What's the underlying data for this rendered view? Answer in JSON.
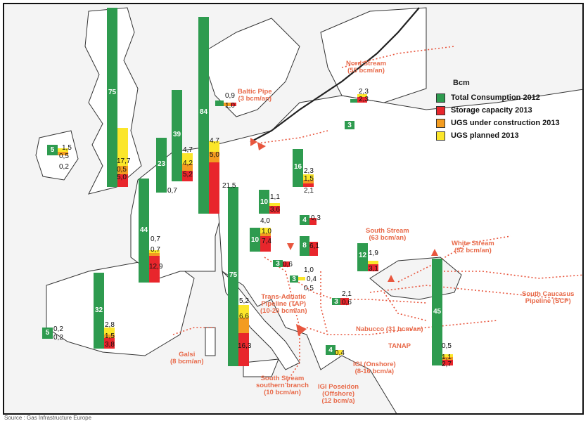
{
  "legend": {
    "title": "Bcm",
    "items": [
      {
        "label": "Total Consumption 2012",
        "color": "#2e9b4f"
      },
      {
        "label": "Storage capacity 2013",
        "color": "#e8262c"
      },
      {
        "label": "UGS under construction 2013",
        "color": "#f39c20"
      },
      {
        "label": "UGS planned 2013",
        "color": "#fbe62a"
      }
    ]
  },
  "countries": [
    {
      "id": "ireland",
      "consumption": "5",
      "labels": [
        "1,5",
        "0,5",
        "0,2"
      ]
    },
    {
      "id": "uk",
      "consumption": "75",
      "labels": [
        "17,7",
        "0,5",
        "5,0"
      ]
    },
    {
      "id": "belgium",
      "consumption": "23",
      "labels": [
        "0,7"
      ]
    },
    {
      "id": "netherlands",
      "consumption": "39",
      "labels": [
        "4,7",
        "4,2",
        "5,2"
      ]
    },
    {
      "id": "germany",
      "consumption": "84",
      "labels": [
        "4,7",
        "5,0",
        "21,5"
      ]
    },
    {
      "id": "denmark",
      "consumption": "",
      "labels": [
        "0,9",
        "1,0"
      ]
    },
    {
      "id": "france",
      "consumption": "44",
      "labels": [
        "0,7",
        "0,7",
        "12,9"
      ]
    },
    {
      "id": "latvia",
      "consumption": "",
      "labels": [
        "2,3",
        "2,3"
      ]
    },
    {
      "id": "lithuania",
      "consumption": "3",
      "labels": []
    },
    {
      "id": "poland",
      "consumption": "16",
      "labels": [
        "2,3",
        "1,5",
        "2,1"
      ]
    },
    {
      "id": "czech",
      "consumption": "10",
      "labels": [
        "1,1",
        "3,6"
      ]
    },
    {
      "id": "austria",
      "consumption": "10",
      "labels": [
        "4,0",
        "1,0",
        "7,4"
      ]
    },
    {
      "id": "slovakia",
      "consumption": "4",
      "labels": [
        "0,3"
      ]
    },
    {
      "id": "hungary",
      "consumption": "8",
      "labels": [
        "6,1"
      ]
    },
    {
      "id": "romania",
      "consumption": "12",
      "labels": [
        "1,9",
        "3,1"
      ]
    },
    {
      "id": "croatia",
      "consumption": "3",
      "labels": [
        "0,6"
      ]
    },
    {
      "id": "serbia",
      "consumption": "3",
      "labels": [
        "1,0",
        "0,4",
        "0,5"
      ]
    },
    {
      "id": "bulgaria",
      "consumption": "3",
      "labels": [
        "2,1",
        "0,6"
      ]
    },
    {
      "id": "turkey",
      "consumption": "45",
      "labels": [
        "0,5",
        "1,1",
        "2,7"
      ]
    },
    {
      "id": "italy",
      "consumption": "75",
      "labels": [
        "5,2",
        "6,6",
        "16,3"
      ]
    },
    {
      "id": "spain",
      "consumption": "32",
      "labels": [
        "2,8",
        "1,5",
        "3,8"
      ]
    },
    {
      "id": "portugal",
      "consumption": "5",
      "labels": [
        "0,2",
        "0,2"
      ]
    },
    {
      "id": "greece",
      "consumption": "4",
      "labels": [
        "0,4"
      ]
    }
  ],
  "routes": [
    {
      "id": "nord-stream",
      "text": "Nord Stream\n(55 bcm/an)"
    },
    {
      "id": "baltic-pipe",
      "text": "Baltic Pipe\n(3 bcm/an)"
    },
    {
      "id": "south-stream",
      "text": "South Stream\n(63 bcm/an)"
    },
    {
      "id": "white-stream",
      "text": "White Stream\n(32 bcm/an)"
    },
    {
      "id": "tap",
      "text": "Trans-Adriatic\nPipeline (TAP)\n(10-20 bcm/an)"
    },
    {
      "id": "scp",
      "text": "South Caucasus\nPipeline (SCP)"
    },
    {
      "id": "nabucco",
      "text": "Nabucco (31 bcm/an)"
    },
    {
      "id": "tanap",
      "text": "TANAP"
    },
    {
      "id": "galsi",
      "text": "Galsi\n(8 bcm/an)"
    },
    {
      "id": "south-stream-southern",
      "text": "South Stream\nsouthern branch\n(10 bcm/an)"
    },
    {
      "id": "igi-onshore",
      "text": "IGI (Onshore)\n(8-16 bcm/a)"
    },
    {
      "id": "igi-poseidon",
      "text": "IGI Poseidon\n(Offshore)\n(12 bcm/a)"
    }
  ],
  "source": "Source : Gas Infrastructure Europe"
}
